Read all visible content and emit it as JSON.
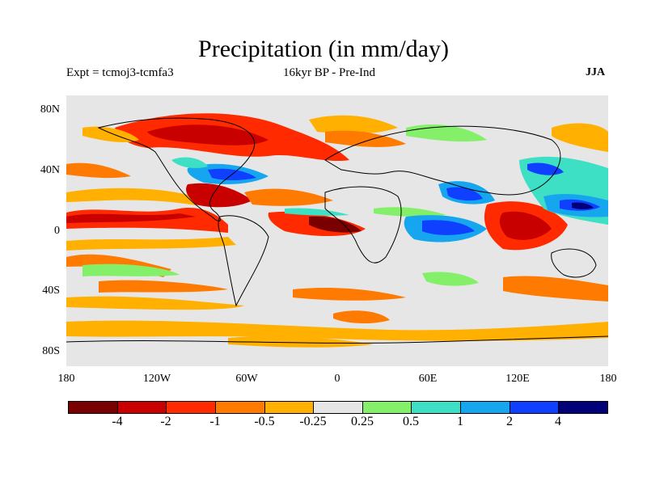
{
  "map": {
    "title": "Precipitation (in mm/day)",
    "experiment": "Expt = tcmoj3-tcmfa3",
    "period": "16kyr BP - Pre-Ind",
    "season": "JJA",
    "lat_labels": [
      "80N",
      "40N",
      "0",
      "40S",
      "80S"
    ],
    "lon_labels": [
      "180",
      "120W",
      "60W",
      "0",
      "60E",
      "120E",
      "180"
    ],
    "colorbar": {
      "levels": [
        "-4",
        "-2",
        "-1",
        "-0.5",
        "-0.25",
        "0.25",
        "0.5",
        "1",
        "2",
        "4"
      ],
      "colors": [
        "#7a0000",
        "#c80000",
        "#ff2a00",
        "#ff7a00",
        "#ffb000",
        "#e6e6e6",
        "#84f06a",
        "#3de0c4",
        "#16a6f0",
        "#1040ff",
        "#000078"
      ]
    }
  }
}
